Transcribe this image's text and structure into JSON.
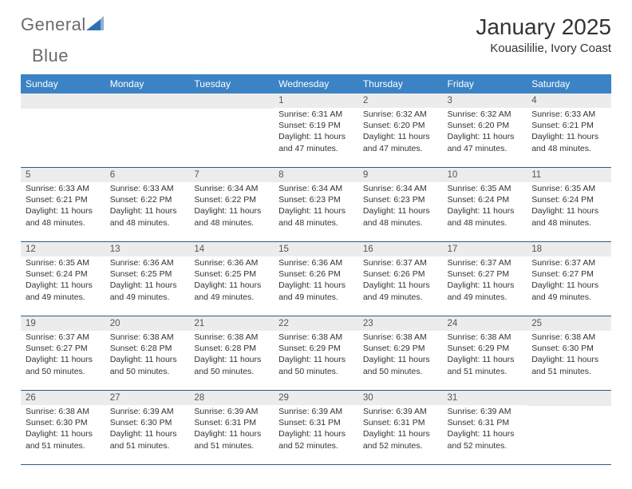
{
  "brand": {
    "text1": "General",
    "text2": "Blue",
    "text1_color": "#6b6b6b",
    "text2_color": "#2f6fae",
    "icon_color": "#2f6fae"
  },
  "title": "January 2025",
  "location": "Kouasililie, Ivory Coast",
  "header_bg": "#3b83c4",
  "daynum_bg": "#ececec",
  "border_color": "#2c5d8a",
  "day_names": [
    "Sunday",
    "Monday",
    "Tuesday",
    "Wednesday",
    "Thursday",
    "Friday",
    "Saturday"
  ],
  "weeks": [
    [
      null,
      null,
      null,
      {
        "num": "1",
        "lines": [
          "Sunrise: 6:31 AM",
          "Sunset: 6:19 PM",
          "Daylight: 11 hours and 47 minutes."
        ]
      },
      {
        "num": "2",
        "lines": [
          "Sunrise: 6:32 AM",
          "Sunset: 6:20 PM",
          "Daylight: 11 hours and 47 minutes."
        ]
      },
      {
        "num": "3",
        "lines": [
          "Sunrise: 6:32 AM",
          "Sunset: 6:20 PM",
          "Daylight: 11 hours and 47 minutes."
        ]
      },
      {
        "num": "4",
        "lines": [
          "Sunrise: 6:33 AM",
          "Sunset: 6:21 PM",
          "Daylight: 11 hours and 48 minutes."
        ]
      }
    ],
    [
      {
        "num": "5",
        "lines": [
          "Sunrise: 6:33 AM",
          "Sunset: 6:21 PM",
          "Daylight: 11 hours and 48 minutes."
        ]
      },
      {
        "num": "6",
        "lines": [
          "Sunrise: 6:33 AM",
          "Sunset: 6:22 PM",
          "Daylight: 11 hours and 48 minutes."
        ]
      },
      {
        "num": "7",
        "lines": [
          "Sunrise: 6:34 AM",
          "Sunset: 6:22 PM",
          "Daylight: 11 hours and 48 minutes."
        ]
      },
      {
        "num": "8",
        "lines": [
          "Sunrise: 6:34 AM",
          "Sunset: 6:23 PM",
          "Daylight: 11 hours and 48 minutes."
        ]
      },
      {
        "num": "9",
        "lines": [
          "Sunrise: 6:34 AM",
          "Sunset: 6:23 PM",
          "Daylight: 11 hours and 48 minutes."
        ]
      },
      {
        "num": "10",
        "lines": [
          "Sunrise: 6:35 AM",
          "Sunset: 6:24 PM",
          "Daylight: 11 hours and 48 minutes."
        ]
      },
      {
        "num": "11",
        "lines": [
          "Sunrise: 6:35 AM",
          "Sunset: 6:24 PM",
          "Daylight: 11 hours and 48 minutes."
        ]
      }
    ],
    [
      {
        "num": "12",
        "lines": [
          "Sunrise: 6:35 AM",
          "Sunset: 6:24 PM",
          "Daylight: 11 hours and 49 minutes."
        ]
      },
      {
        "num": "13",
        "lines": [
          "Sunrise: 6:36 AM",
          "Sunset: 6:25 PM",
          "Daylight: 11 hours and 49 minutes."
        ]
      },
      {
        "num": "14",
        "lines": [
          "Sunrise: 6:36 AM",
          "Sunset: 6:25 PM",
          "Daylight: 11 hours and 49 minutes."
        ]
      },
      {
        "num": "15",
        "lines": [
          "Sunrise: 6:36 AM",
          "Sunset: 6:26 PM",
          "Daylight: 11 hours and 49 minutes."
        ]
      },
      {
        "num": "16",
        "lines": [
          "Sunrise: 6:37 AM",
          "Sunset: 6:26 PM",
          "Daylight: 11 hours and 49 minutes."
        ]
      },
      {
        "num": "17",
        "lines": [
          "Sunrise: 6:37 AM",
          "Sunset: 6:27 PM",
          "Daylight: 11 hours and 49 minutes."
        ]
      },
      {
        "num": "18",
        "lines": [
          "Sunrise: 6:37 AM",
          "Sunset: 6:27 PM",
          "Daylight: 11 hours and 49 minutes."
        ]
      }
    ],
    [
      {
        "num": "19",
        "lines": [
          "Sunrise: 6:37 AM",
          "Sunset: 6:27 PM",
          "Daylight: 11 hours and 50 minutes."
        ]
      },
      {
        "num": "20",
        "lines": [
          "Sunrise: 6:38 AM",
          "Sunset: 6:28 PM",
          "Daylight: 11 hours and 50 minutes."
        ]
      },
      {
        "num": "21",
        "lines": [
          "Sunrise: 6:38 AM",
          "Sunset: 6:28 PM",
          "Daylight: 11 hours and 50 minutes."
        ]
      },
      {
        "num": "22",
        "lines": [
          "Sunrise: 6:38 AM",
          "Sunset: 6:29 PM",
          "Daylight: 11 hours and 50 minutes."
        ]
      },
      {
        "num": "23",
        "lines": [
          "Sunrise: 6:38 AM",
          "Sunset: 6:29 PM",
          "Daylight: 11 hours and 50 minutes."
        ]
      },
      {
        "num": "24",
        "lines": [
          "Sunrise: 6:38 AM",
          "Sunset: 6:29 PM",
          "Daylight: 11 hours and 51 minutes."
        ]
      },
      {
        "num": "25",
        "lines": [
          "Sunrise: 6:38 AM",
          "Sunset: 6:30 PM",
          "Daylight: 11 hours and 51 minutes."
        ]
      }
    ],
    [
      {
        "num": "26",
        "lines": [
          "Sunrise: 6:38 AM",
          "Sunset: 6:30 PM",
          "Daylight: 11 hours and 51 minutes."
        ]
      },
      {
        "num": "27",
        "lines": [
          "Sunrise: 6:39 AM",
          "Sunset: 6:30 PM",
          "Daylight: 11 hours and 51 minutes."
        ]
      },
      {
        "num": "28",
        "lines": [
          "Sunrise: 6:39 AM",
          "Sunset: 6:31 PM",
          "Daylight: 11 hours and 51 minutes."
        ]
      },
      {
        "num": "29",
        "lines": [
          "Sunrise: 6:39 AM",
          "Sunset: 6:31 PM",
          "Daylight: 11 hours and 52 minutes."
        ]
      },
      {
        "num": "30",
        "lines": [
          "Sunrise: 6:39 AM",
          "Sunset: 6:31 PM",
          "Daylight: 11 hours and 52 minutes."
        ]
      },
      {
        "num": "31",
        "lines": [
          "Sunrise: 6:39 AM",
          "Sunset: 6:31 PM",
          "Daylight: 11 hours and 52 minutes."
        ]
      },
      null
    ]
  ]
}
